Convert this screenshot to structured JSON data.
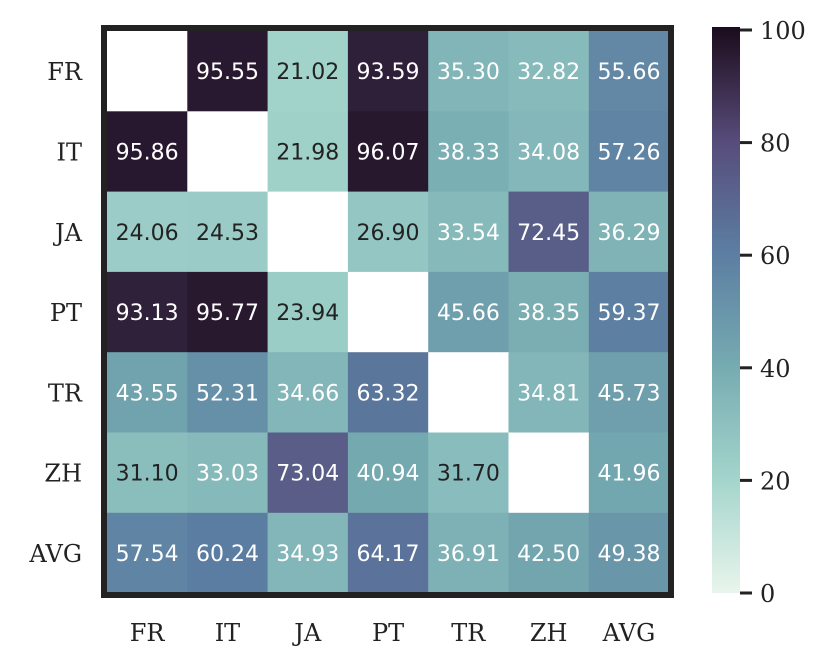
{
  "chart_data": {
    "type": "heatmap",
    "rows": [
      "FR",
      "IT",
      "JA",
      "PT",
      "TR",
      "ZH",
      "AVG"
    ],
    "cols": [
      "FR",
      "IT",
      "JA",
      "PT",
      "TR",
      "ZH",
      "AVG"
    ],
    "values": [
      [
        null,
        95.55,
        21.02,
        93.59,
        35.3,
        32.82,
        55.66
      ],
      [
        95.86,
        null,
        21.98,
        96.07,
        38.33,
        34.08,
        57.26
      ],
      [
        24.06,
        24.53,
        null,
        26.9,
        33.54,
        72.45,
        36.29
      ],
      [
        93.13,
        95.77,
        23.94,
        null,
        45.66,
        38.35,
        59.37
      ],
      [
        43.55,
        52.31,
        34.66,
        63.32,
        null,
        34.81,
        45.73
      ],
      [
        31.1,
        33.03,
        73.04,
        40.94,
        31.7,
        null,
        41.96
      ],
      [
        57.54,
        60.24,
        34.93,
        64.17,
        36.91,
        42.5,
        49.38
      ]
    ],
    "colorbar": {
      "min": 0,
      "max": 100,
      "ticks": [
        "0",
        "20",
        "40",
        "60",
        "80",
        "100"
      ]
    },
    "colormap": [
      "#e9f5ec",
      "#a4d5cc",
      "#76abb1",
      "#5c7ea2",
      "#574b7a",
      "#2b1b32",
      "#1a0c1e"
    ],
    "value_decimals": 2,
    "title": "",
    "xlabel": "",
    "ylabel": ""
  }
}
